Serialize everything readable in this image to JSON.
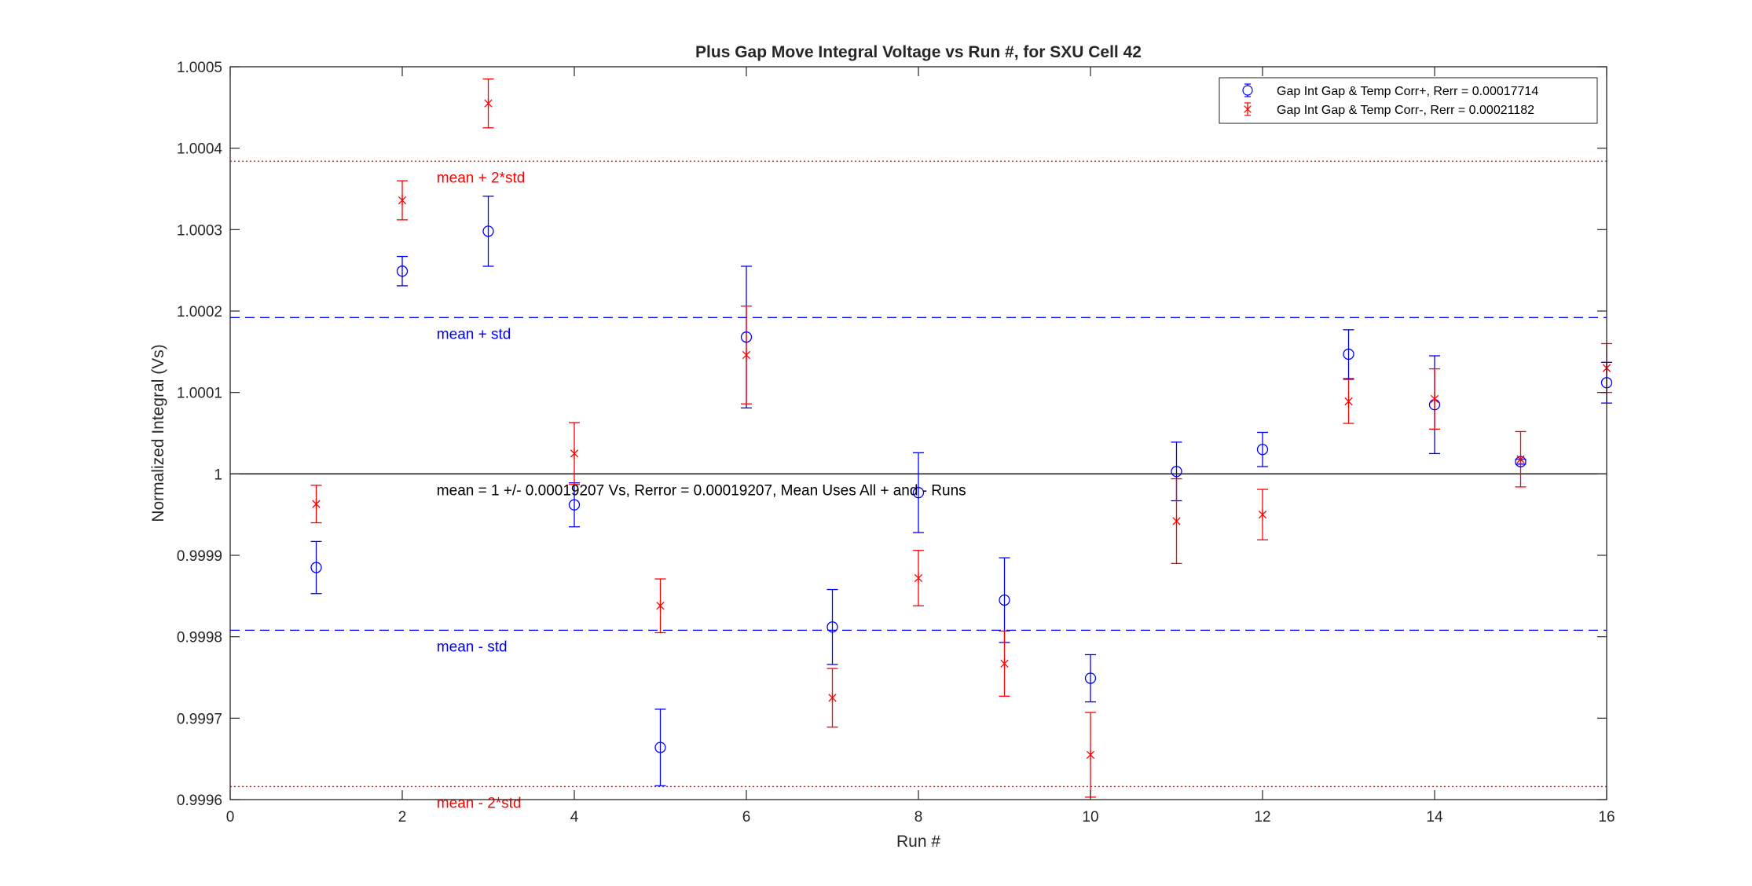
{
  "chart_data": {
    "type": "scatter",
    "title": "Plus Gap Move Integral Voltage vs Run #, for SXU Cell 42",
    "xlabel": "Run #",
    "ylabel": "Normalized Integral (Vs)",
    "xlim": [
      0,
      16
    ],
    "ylim": [
      0.9996,
      1.0005
    ],
    "x_ticks": [
      0,
      2,
      4,
      6,
      8,
      10,
      12,
      14,
      16
    ],
    "x_tick_labels": [
      "0",
      "2",
      "4",
      "6",
      "8",
      "10",
      "12",
      "14",
      "16"
    ],
    "y_ticks": [
      0.9996,
      0.9997,
      0.9998,
      0.9999,
      1.0,
      1.0001,
      1.0002,
      1.0003,
      1.0004,
      1.0005
    ],
    "y_tick_labels": [
      "0.9996",
      "0.9997",
      "0.9998",
      "0.9999",
      "1",
      "1.0001",
      "1.0002",
      "1.0003",
      "1.0004",
      "1.0005"
    ],
    "grid": false,
    "legend_position": "top-right",
    "series": [
      {
        "name": "Gap Int Gap & Temp Corr+, Rerr = 0.00017714",
        "color": "#0000ff",
        "marker": "circle",
        "x": [
          1,
          2,
          3,
          4,
          5,
          6,
          7,
          8,
          9,
          10,
          11,
          12,
          13,
          14,
          15,
          16
        ],
        "y": [
          0.999885,
          1.000249,
          1.000298,
          0.999962,
          0.999664,
          1.000168,
          0.999812,
          0.999977,
          0.999845,
          0.999749,
          1.000003,
          1.00003,
          1.000147,
          1.000085,
          1.000015,
          1.000112
        ],
        "err": [
          3.2e-05,
          1.8e-05,
          4.3e-05,
          2.7e-05,
          4.7e-05,
          8.7e-05,
          4.6e-05,
          4.9e-05,
          5.2e-05,
          2.9e-05,
          3.6e-05,
          2.1e-05,
          3e-05,
          6e-05,
          3e-06,
          2.5e-05
        ]
      },
      {
        "name": "Gap Int Gap & Temp  Corr-, Rerr = 0.00021182",
        "color": "#ff0000",
        "marker": "asterisk",
        "x": [
          1,
          2,
          3,
          4,
          5,
          6,
          7,
          8,
          9,
          10,
          11,
          12,
          13,
          14,
          15,
          16
        ],
        "y": [
          0.999963,
          1.000336,
          1.000455,
          1.000025,
          0.999838,
          1.000146,
          0.999725,
          0.999872,
          0.999767,
          0.999655,
          0.999942,
          0.99995,
          1.000089,
          1.000092,
          1.000018,
          1.00013
        ],
        "err": [
          2.3e-05,
          2.4e-05,
          3e-05,
          3.8e-05,
          3.3e-05,
          6e-05,
          3.6e-05,
          3.4e-05,
          4e-05,
          5.2e-05,
          5.2e-05,
          3.1e-05,
          2.7e-05,
          3.7e-05,
          3.4e-05,
          3e-05
        ]
      }
    ],
    "reference_lines": [
      {
        "y": 1.000384,
        "style": "dotted",
        "color": "#ff0000",
        "label": "mean + 2*std"
      },
      {
        "y": 1.000192,
        "style": "dashed",
        "color": "#0000ff",
        "label": "mean + std"
      },
      {
        "y": 1.0,
        "style": "solid",
        "color": "#000000",
        "label": "mean = 1 +/- 0.00019207 Vs, Rerror = 0.00019207, Mean Uses All + and - Runs"
      },
      {
        "y": 0.999808,
        "style": "dashed",
        "color": "#0000ff",
        "label": "mean - std"
      },
      {
        "y": 0.999616,
        "style": "dotted",
        "color": "#ff0000",
        "label": "mean - 2*std"
      }
    ],
    "reference_label_x": 2.4
  }
}
